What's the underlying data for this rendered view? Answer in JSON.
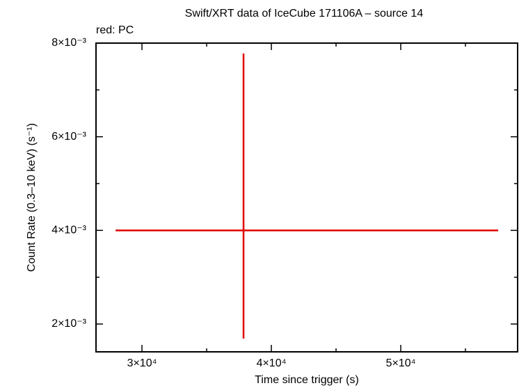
{
  "chart_data": {
    "type": "scatter",
    "title": "Swift/XRT data of IceCube 171106A – source 14",
    "subtitle": "red: PC",
    "x_label": "Time since trigger (s)",
    "y_label": "Count Rate (0.3–10 keV) (s⁻¹)",
    "xlim": [
      26450,
      59030
    ],
    "ylim": [
      0.001406,
      0.008
    ],
    "xticks": [
      {
        "value": 30000,
        "label": "3×10⁴"
      },
      {
        "value": 40000,
        "label": "4×10⁴"
      },
      {
        "value": 50000,
        "label": "5×10⁴"
      }
    ],
    "yticks": [
      {
        "value": 0.002,
        "label": "2×10⁻³"
      },
      {
        "value": 0.004,
        "label": "4×10⁻³"
      },
      {
        "value": 0.006,
        "label": "6×10⁻³"
      },
      {
        "value": 0.008,
        "label": "8×10⁻³"
      }
    ],
    "xminorticks": [
      35000,
      45000,
      55000
    ],
    "yminorticks": [
      0.003,
      0.005,
      0.007
    ],
    "series": [
      {
        "name": "PC",
        "color": "#e00000",
        "x": [
          37850
        ],
        "values": [
          0.004
        ],
        "xerr_minus": [
          9890
        ],
        "xerr_plus": [
          19680
        ],
        "yerr_minus": [
          0.00231
        ],
        "yerr_plus": [
          0.00378
        ]
      }
    ]
  }
}
